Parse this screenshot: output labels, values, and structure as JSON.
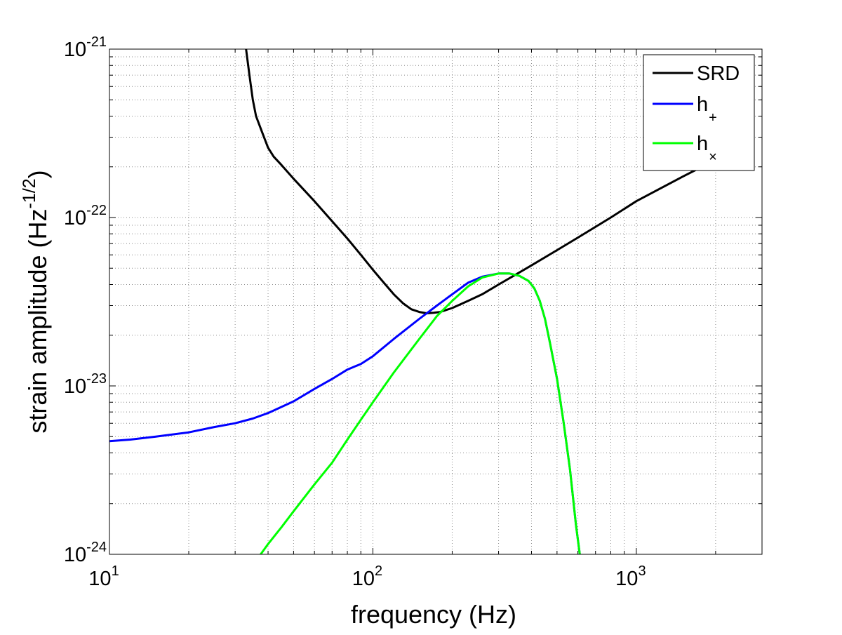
{
  "chart_data": {
    "type": "line",
    "title": "",
    "xlabel": "frequency (Hz)",
    "ylabel": {
      "prefix": "strain amplitude (Hz",
      "sup": "-1/2",
      "suffix": ")"
    },
    "x_scale": "log",
    "y_scale": "log",
    "xlim": [
      10,
      3000
    ],
    "ylim": [
      1e-24,
      1e-21
    ],
    "grid": true,
    "legend_position": "top-right",
    "x_ticks": [
      {
        "value": 10,
        "base": "10",
        "exp": "1"
      },
      {
        "value": 100,
        "base": "10",
        "exp": "2"
      },
      {
        "value": 1000,
        "base": "10",
        "exp": "3"
      }
    ],
    "y_ticks": [
      {
        "value": 1e-24,
        "base": "10",
        "exp": "-24"
      },
      {
        "value": 1e-23,
        "base": "10",
        "exp": "-23"
      },
      {
        "value": 1e-22,
        "base": "10",
        "exp": "-22"
      },
      {
        "value": 1e-21,
        "base": "10",
        "exp": "-21"
      }
    ],
    "series": [
      {
        "name": "SRD",
        "label_base": "SRD",
        "label_sub": "",
        "color": "#000000",
        "points": [
          [
            33,
            1e-21
          ],
          [
            34,
            7e-22
          ],
          [
            35,
            5e-22
          ],
          [
            36,
            4e-22
          ],
          [
            38,
            3.2e-22
          ],
          [
            40,
            2.6e-22
          ],
          [
            42,
            2.3e-22
          ],
          [
            45,
            2.05e-22
          ],
          [
            50,
            1.7e-22
          ],
          [
            60,
            1.25e-22
          ],
          [
            70,
            9.5e-23
          ],
          [
            80,
            7.5e-23
          ],
          [
            90,
            6e-23
          ],
          [
            100,
            4.9e-23
          ],
          [
            110,
            4.1e-23
          ],
          [
            120,
            3.5e-23
          ],
          [
            130,
            3.1e-23
          ],
          [
            140,
            2.85e-23
          ],
          [
            150,
            2.75e-23
          ],
          [
            160,
            2.7e-23
          ],
          [
            170,
            2.72e-23
          ],
          [
            180,
            2.75e-23
          ],
          [
            200,
            2.9e-23
          ],
          [
            230,
            3.2e-23
          ],
          [
            260,
            3.5e-23
          ],
          [
            300,
            4e-23
          ],
          [
            350,
            4.6e-23
          ],
          [
            400,
            5.2e-23
          ],
          [
            500,
            6.4e-23
          ],
          [
            600,
            7.6e-23
          ],
          [
            800,
            1e-22
          ],
          [
            1000,
            1.25e-22
          ],
          [
            1500,
            1.75e-22
          ],
          [
            2000,
            2.2e-22
          ]
        ]
      },
      {
        "name": "h+",
        "label_base": "h",
        "label_sub": "+",
        "color": "#0000ff",
        "points": [
          [
            10,
            4.7e-24
          ],
          [
            12,
            4.8e-24
          ],
          [
            15,
            5e-24
          ],
          [
            20,
            5.3e-24
          ],
          [
            25,
            5.7e-24
          ],
          [
            30,
            6e-24
          ],
          [
            35,
            6.4e-24
          ],
          [
            40,
            6.9e-24
          ],
          [
            50,
            8.1e-24
          ],
          [
            60,
            9.6e-24
          ],
          [
            70,
            1.1e-23
          ],
          [
            80,
            1.25e-23
          ],
          [
            90,
            1.35e-23
          ],
          [
            100,
            1.5e-23
          ],
          [
            120,
            1.9e-23
          ],
          [
            150,
            2.5e-23
          ],
          [
            175,
            3e-23
          ],
          [
            200,
            3.5e-23
          ],
          [
            230,
            4.1e-23
          ],
          [
            260,
            4.45e-23
          ],
          [
            300,
            4.65e-23
          ],
          [
            330,
            4.65e-23
          ],
          [
            360,
            4.5e-23
          ],
          [
            390,
            4.2e-23
          ],
          [
            410,
            3.8e-23
          ],
          [
            430,
            3.2e-23
          ],
          [
            450,
            2.5e-23
          ],
          [
            470,
            1.8e-23
          ],
          [
            500,
            1.1e-23
          ],
          [
            530,
            6e-24
          ],
          [
            560,
            3.2e-24
          ],
          [
            590,
            1.5e-24
          ],
          [
            610,
            1e-24
          ]
        ]
      },
      {
        "name": "h×",
        "label_base": "h",
        "label_sub": "×",
        "color": "#00ff00",
        "points": [
          [
            37.5,
            1e-24
          ],
          [
            40,
            1.15e-24
          ],
          [
            45,
            1.45e-24
          ],
          [
            50,
            1.8e-24
          ],
          [
            60,
            2.6e-24
          ],
          [
            70,
            3.5e-24
          ],
          [
            80,
            4.8e-24
          ],
          [
            90,
            6.3e-24
          ],
          [
            100,
            8e-24
          ],
          [
            120,
            1.2e-23
          ],
          [
            150,
            1.9e-23
          ],
          [
            175,
            2.6e-23
          ],
          [
            200,
            3.2e-23
          ],
          [
            230,
            3.9e-23
          ],
          [
            260,
            4.4e-23
          ],
          [
            300,
            4.65e-23
          ],
          [
            330,
            4.65e-23
          ],
          [
            360,
            4.5e-23
          ],
          [
            390,
            4.2e-23
          ],
          [
            410,
            3.8e-23
          ],
          [
            430,
            3.2e-23
          ],
          [
            450,
            2.5e-23
          ],
          [
            470,
            1.8e-23
          ],
          [
            500,
            1.1e-23
          ],
          [
            530,
            6e-24
          ],
          [
            560,
            3.2e-24
          ],
          [
            590,
            1.5e-24
          ],
          [
            610,
            1e-24
          ]
        ]
      }
    ]
  }
}
